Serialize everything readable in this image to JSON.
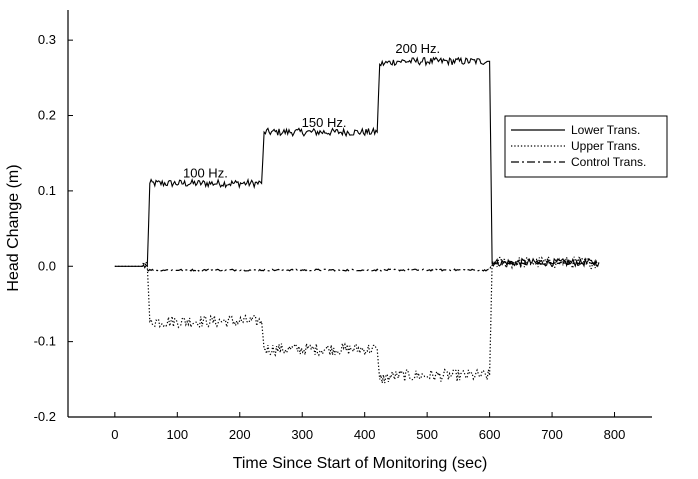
{
  "chart_data": {
    "type": "line",
    "title": "",
    "xlabel": "Time Since Start of Monitoring (sec)",
    "ylabel": "Head Change (m)",
    "xlim": [
      -75,
      860
    ],
    "ylim": [
      -0.2,
      0.34
    ],
    "xticks": [
      0,
      100,
      200,
      300,
      400,
      500,
      600,
      700,
      800
    ],
    "yticks": [
      -0.2,
      -0.1,
      0.0,
      0.1,
      0.2,
      0.3
    ],
    "ytick_labels": [
      "-0.2",
      "-0.1",
      "0.0",
      "0.1",
      "0.2",
      "0.3"
    ],
    "grid": false,
    "legend_position": "right",
    "series": [
      {
        "name": "Lower Trans.",
        "style": "solid",
        "points": [
          [
            0,
            0.0
          ],
          [
            52,
            0.0
          ],
          [
            56,
            0.11
          ],
          [
            235,
            0.11
          ],
          [
            239,
            0.178
          ],
          [
            420,
            0.178
          ],
          [
            424,
            0.268
          ],
          [
            452,
            0.272
          ],
          [
            600,
            0.272
          ],
          [
            604,
            0.005
          ],
          [
            775,
            0.005
          ]
        ]
      },
      {
        "name": "Upper Trans.",
        "style": "dotted",
        "points": [
          [
            0,
            0.0
          ],
          [
            52,
            0.0
          ],
          [
            56,
            -0.073
          ],
          [
            235,
            -0.073
          ],
          [
            239,
            -0.11
          ],
          [
            420,
            -0.11
          ],
          [
            424,
            -0.15
          ],
          [
            452,
            -0.145
          ],
          [
            600,
            -0.145
          ],
          [
            604,
            0.005
          ],
          [
            775,
            0.005
          ]
        ]
      },
      {
        "name": "Control Trans.",
        "style": "dashdot",
        "points": [
          [
            52,
            -0.005
          ],
          [
            600,
            -0.005
          ],
          [
            604,
            0.004
          ],
          [
            775,
            0.004
          ]
        ]
      }
    ],
    "annotations": [
      {
        "text": "100 Hz.",
        "x": 145,
        "y": 0.118
      },
      {
        "text": "150 Hz.",
        "x": 335,
        "y": 0.185
      },
      {
        "text": "200 Hz.",
        "x": 485,
        "y": 0.283
      }
    ]
  }
}
